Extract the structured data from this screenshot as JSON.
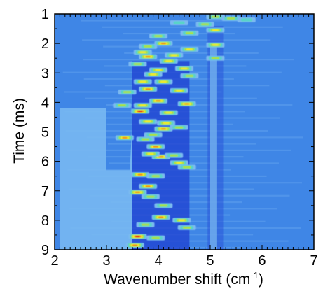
{
  "chart_data": {
    "type": "heatmap",
    "xlabel": "Wavenumber shift (cm",
    "xlabel_superscript": "-1",
    "xlabel_close": ")",
    "ylabel": "Time (ms)",
    "xlim": [
      2,
      7
    ],
    "ylim": [
      1,
      9
    ],
    "y_inverted": true,
    "x_ticks": [
      "2",
      "3",
      "4",
      "5",
      "6",
      "7"
    ],
    "y_ticks": [
      "1",
      "2",
      "3",
      "4",
      "5",
      "6",
      "7",
      "8",
      "9"
    ],
    "colormap": [
      "#4a8ee8",
      "#7bb9f0",
      "#58d4c8",
      "#a8e04a",
      "#f2ea2a",
      "#f08a1c",
      "#e0201c"
    ],
    "background_color": "#3f86e6",
    "deep_band": {
      "x": [
        3.5,
        4.6
      ],
      "y": [
        2.6,
        9
      ],
      "color": "#1f3fd0"
    },
    "light_region": {
      "x": [
        2.1,
        3.5
      ],
      "y": [
        4.2,
        9
      ],
      "color": "#78b8f2"
    },
    "hotspots": [
      {
        "x": 5.1,
        "y": 1.1,
        "i": 0.5
      },
      {
        "x": 5.4,
        "y": 1.15,
        "i": 0.45
      },
      {
        "x": 5.7,
        "y": 1.2,
        "i": 0.4
      },
      {
        "x": 4.4,
        "y": 1.3,
        "i": 0.4
      },
      {
        "x": 4.9,
        "y": 1.35,
        "i": 0.55
      },
      {
        "x": 5.1,
        "y": 1.55,
        "i": 0.6
      },
      {
        "x": 4.6,
        "y": 1.65,
        "i": 0.5
      },
      {
        "x": 4.0,
        "y": 1.75,
        "i": 0.45
      },
      {
        "x": 4.1,
        "y": 2.0,
        "i": 0.9
      },
      {
        "x": 3.8,
        "y": 2.1,
        "i": 0.55
      },
      {
        "x": 5.1,
        "y": 2.05,
        "i": 0.7
      },
      {
        "x": 4.6,
        "y": 2.2,
        "i": 0.6
      },
      {
        "x": 3.7,
        "y": 2.3,
        "i": 0.6
      },
      {
        "x": 4.3,
        "y": 2.4,
        "i": 0.7
      },
      {
        "x": 3.8,
        "y": 2.45,
        "i": 0.85
      },
      {
        "x": 5.1,
        "y": 2.5,
        "i": 0.55
      },
      {
        "x": 4.2,
        "y": 2.6,
        "i": 0.6
      },
      {
        "x": 3.6,
        "y": 2.7,
        "i": 0.55
      },
      {
        "x": 4.0,
        "y": 2.9,
        "i": 0.65
      },
      {
        "x": 4.5,
        "y": 2.85,
        "i": 0.6
      },
      {
        "x": 3.9,
        "y": 3.05,
        "i": 0.7
      },
      {
        "x": 4.6,
        "y": 3.1,
        "i": 0.55
      },
      {
        "x": 3.7,
        "y": 3.3,
        "i": 0.6
      },
      {
        "x": 4.1,
        "y": 3.3,
        "i": 0.6
      },
      {
        "x": 3.8,
        "y": 3.55,
        "i": 0.75
      },
      {
        "x": 4.4,
        "y": 3.6,
        "i": 0.65
      },
      {
        "x": 3.4,
        "y": 3.65,
        "i": 0.5
      },
      {
        "x": 4.0,
        "y": 3.95,
        "i": 0.85
      },
      {
        "x": 4.55,
        "y": 4.05,
        "i": 0.75
      },
      {
        "x": 3.7,
        "y": 4.1,
        "i": 0.6
      },
      {
        "x": 3.3,
        "y": 4.1,
        "i": 0.5
      },
      {
        "x": 3.65,
        "y": 4.3,
        "i": 1.0
      },
      {
        "x": 4.2,
        "y": 4.35,
        "i": 0.65
      },
      {
        "x": 3.8,
        "y": 4.65,
        "i": 0.6
      },
      {
        "x": 4.15,
        "y": 4.7,
        "i": 0.6
      },
      {
        "x": 4.1,
        "y": 4.9,
        "i": 0.75
      },
      {
        "x": 4.4,
        "y": 4.85,
        "i": 0.55
      },
      {
        "x": 3.9,
        "y": 5.1,
        "i": 0.55
      },
      {
        "x": 3.35,
        "y": 5.2,
        "i": 0.75
      },
      {
        "x": 3.75,
        "y": 5.25,
        "i": 0.55
      },
      {
        "x": 3.95,
        "y": 5.5,
        "i": 0.8
      },
      {
        "x": 4.05,
        "y": 5.85,
        "i": 0.9
      },
      {
        "x": 4.3,
        "y": 5.8,
        "i": 0.55
      },
      {
        "x": 3.85,
        "y": 5.75,
        "i": 0.6
      },
      {
        "x": 4.4,
        "y": 6.05,
        "i": 0.6
      },
      {
        "x": 4.55,
        "y": 6.2,
        "i": 0.55
      },
      {
        "x": 3.65,
        "y": 6.45,
        "i": 0.85
      },
      {
        "x": 3.95,
        "y": 6.5,
        "i": 0.55
      },
      {
        "x": 3.8,
        "y": 6.85,
        "i": 0.75
      },
      {
        "x": 3.6,
        "y": 7.05,
        "i": 0.75
      },
      {
        "x": 3.85,
        "y": 7.2,
        "i": 0.55
      },
      {
        "x": 4.1,
        "y": 7.5,
        "i": 0.55
      },
      {
        "x": 4.05,
        "y": 7.9,
        "i": 0.85
      },
      {
        "x": 4.45,
        "y": 8.0,
        "i": 0.6
      },
      {
        "x": 4.55,
        "y": 8.25,
        "i": 0.55
      },
      {
        "x": 3.75,
        "y": 8.15,
        "i": 0.5
      },
      {
        "x": 3.6,
        "y": 8.55,
        "i": 0.95
      },
      {
        "x": 3.55,
        "y": 8.85,
        "i": 0.8
      },
      {
        "x": 3.95,
        "y": 8.6,
        "i": 0.5
      }
    ]
  }
}
